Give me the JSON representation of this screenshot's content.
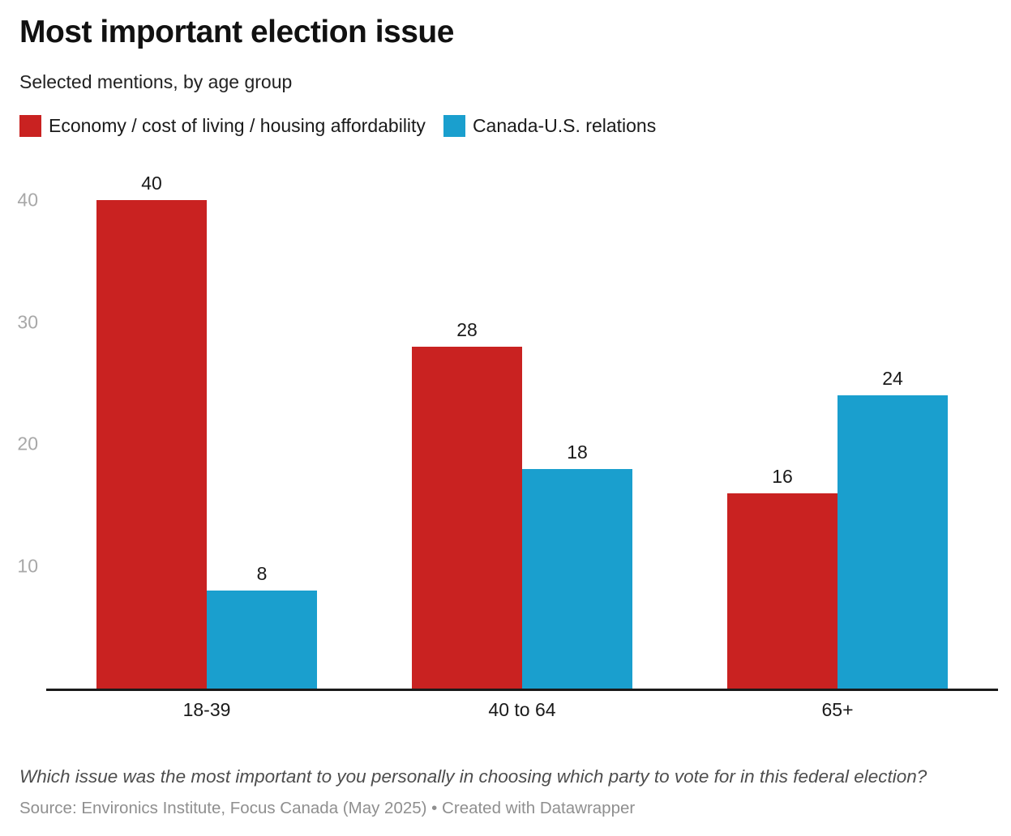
{
  "header": {
    "title": "Most important election issue",
    "subtitle": "Selected mentions, by age group"
  },
  "chart_data": {
    "type": "bar",
    "categories": [
      "18-39",
      "40 to 64",
      "65+"
    ],
    "series": [
      {
        "name": "Economy / cost of living / housing affordability",
        "color": "#c92221",
        "values": [
          40,
          28,
          16
        ]
      },
      {
        "name": "Canada-U.S. relations",
        "color": "#1a9fce",
        "values": [
          8,
          18,
          24
        ]
      }
    ],
    "title": "Most important election issue",
    "subtitle": "Selected mentions, by age group",
    "xlabel": "",
    "ylabel": "",
    "ylim": [
      0,
      42
    ],
    "yticks": [
      10,
      20,
      30,
      40
    ],
    "grid": false,
    "legend_position": "top",
    "value_labels": true
  },
  "yticks": {
    "t10": "10",
    "t20": "20",
    "t30": "30",
    "t40": "40"
  },
  "footer": {
    "note": "Which issue was the most important to you personally in choosing which party to vote for in this federal election?",
    "source": "Source: Environics Institute, Focus Canada (May 2025) • Created with Datawrapper"
  }
}
